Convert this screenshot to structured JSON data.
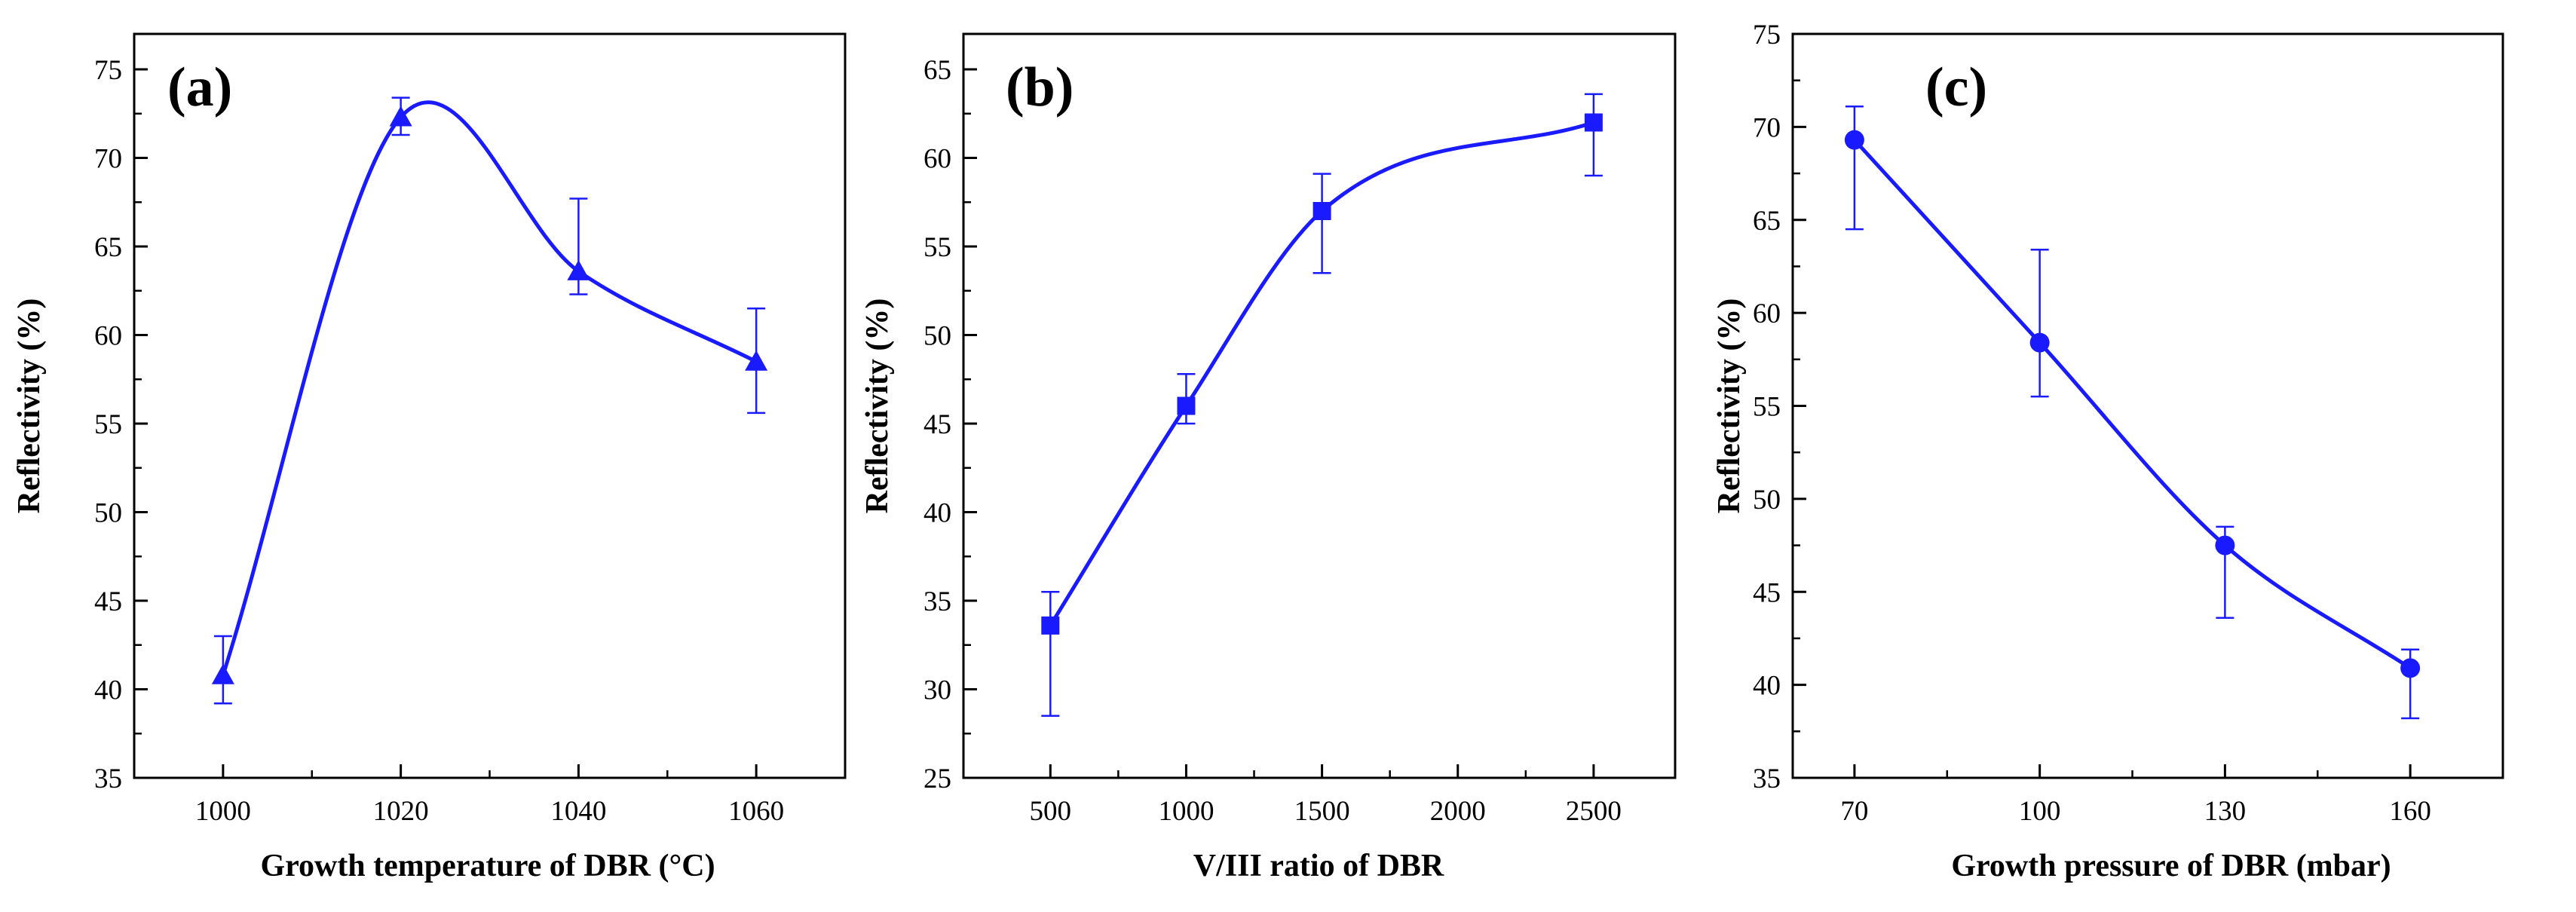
{
  "figure": {
    "colors": {
      "series": "#1a1aff",
      "axis": "#000000"
    }
  },
  "chart_data": [
    {
      "type": "scatter",
      "panel_label": "(a)",
      "xlabel": "Growth temperature of DBR (°C)",
      "ylabel": "Reflectivity (%)",
      "xlim": [
        990,
        1070
      ],
      "ylim": [
        35,
        77
      ],
      "xticks": [
        1000,
        1020,
        1040,
        1060
      ],
      "xtick_labels": [
        "1000",
        "1020",
        "1040",
        "1060"
      ],
      "yticks": [
        35,
        40,
        45,
        50,
        55,
        60,
        65,
        70,
        75
      ],
      "ytick_labels": [
        "35",
        "40",
        "45",
        "50",
        "55",
        "60",
        "65",
        "70",
        "75"
      ],
      "marker": "triangle",
      "series": [
        {
          "name": "Reflectivity",
          "x": [
            1000,
            1020,
            1040,
            1060
          ],
          "y": [
            40.8,
            72.3,
            63.6,
            58.5
          ],
          "err_low": [
            39.2,
            71.3,
            62.3,
            55.6
          ],
          "err_high": [
            43.0,
            73.4,
            67.7,
            61.5
          ]
        }
      ]
    },
    {
      "type": "scatter",
      "panel_label": "(b)",
      "xlabel": "V/III ratio of DBR",
      "ylabel": "Reflectivity (%)",
      "xlim": [
        180,
        2800
      ],
      "ylim": [
        25,
        67
      ],
      "xticks": [
        500,
        1000,
        1500,
        2000,
        2500
      ],
      "xtick_labels": [
        "500",
        "1000",
        "1500",
        "2000",
        "2500"
      ],
      "yticks": [
        25,
        30,
        35,
        40,
        45,
        50,
        55,
        60,
        65
      ],
      "ytick_labels": [
        "25",
        "30",
        "35",
        "40",
        "45",
        "50",
        "55",
        "60",
        "65"
      ],
      "marker": "square",
      "series": [
        {
          "name": "Reflectivity",
          "x": [
            500,
            1000,
            1500,
            2500
          ],
          "y": [
            33.6,
            46.0,
            57.0,
            62.0
          ],
          "err_low": [
            28.5,
            45.0,
            53.5,
            59.0
          ],
          "err_high": [
            35.5,
            47.8,
            59.1,
            63.6
          ]
        }
      ]
    },
    {
      "type": "scatter",
      "panel_label": "(c)",
      "xlabel": "Growth pressure of DBR (mbar)",
      "ylabel": "Reflectivity (%)",
      "xlim": [
        60,
        175
      ],
      "ylim": [
        35,
        75
      ],
      "xticks": [
        70,
        100,
        130,
        160
      ],
      "xtick_labels": [
        "70",
        "100",
        "130",
        "160"
      ],
      "yticks": [
        35,
        40,
        45,
        50,
        55,
        60,
        65,
        70,
        75
      ],
      "ytick_labels": [
        "35",
        "40",
        "45",
        "50",
        "55",
        "60",
        "65",
        "70",
        "75"
      ],
      "marker": "circle",
      "series": [
        {
          "name": "Reflectivity",
          "x": [
            70,
            100,
            130,
            160
          ],
          "y": [
            69.3,
            58.4,
            47.5,
            40.9
          ],
          "err_low": [
            64.5,
            55.5,
            43.6,
            38.2
          ],
          "err_high": [
            71.1,
            63.4,
            48.5,
            41.9
          ]
        }
      ]
    }
  ]
}
